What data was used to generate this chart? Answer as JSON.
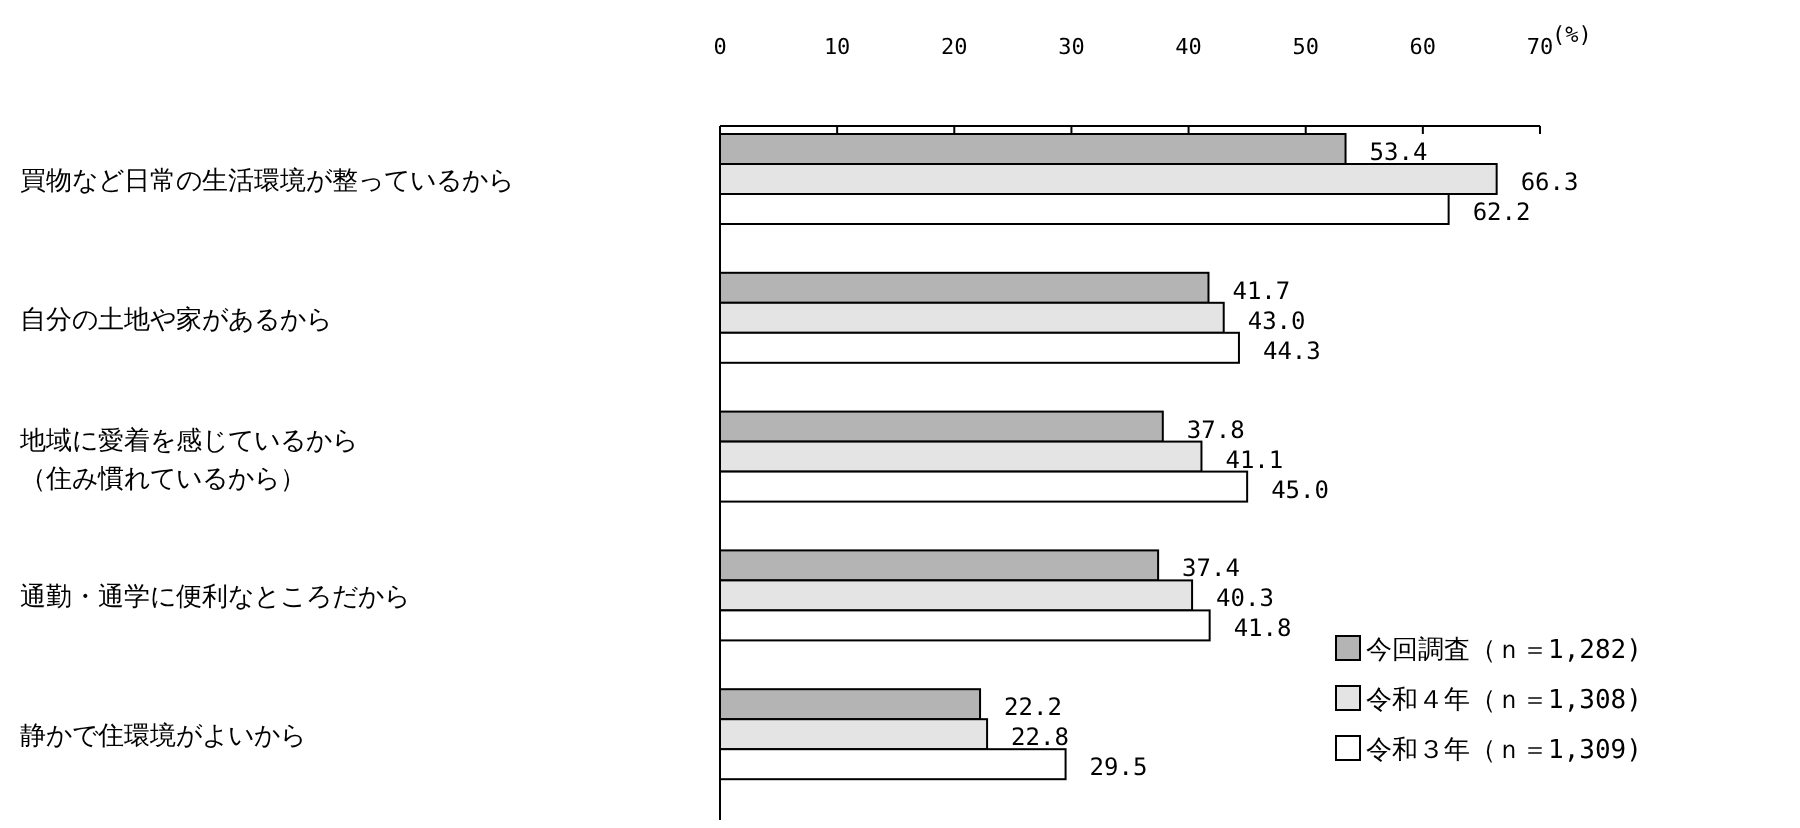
{
  "chart_data": {
    "type": "bar",
    "orientation": "horizontal",
    "xlabel": "(%)",
    "categories": [
      "買物など日常の生活環境が整っているから",
      "自分の土地や家があるから",
      "地域に愛着を感じているから（住み慣れているから）",
      "通勤・通学に便利なところだから",
      "静かで住環境がよいから"
    ],
    "series": [
      {
        "name": "今回調査（ｎ＝1,282)",
        "color": "#b4b4b4",
        "values": [
          53.4,
          41.7,
          37.8,
          37.4,
          22.2
        ],
        "value_labels": [
          "53.4",
          "41.7",
          "37.8",
          "37.4",
          "22.2"
        ]
      },
      {
        "name": "令和４年（ｎ＝1,308)",
        "color": "#e4e4e4",
        "values": [
          66.3,
          43.0,
          41.1,
          40.3,
          22.8
        ],
        "value_labels": [
          "66.3",
          "43.0",
          "41.1",
          "40.3",
          "22.8"
        ]
      },
      {
        "name": "令和３年（ｎ＝1,309)",
        "color": "#ffffff",
        "values": [
          62.2,
          44.3,
          45.0,
          41.8,
          29.5
        ],
        "value_labels": [
          "62.2",
          "44.3",
          "45.0",
          "41.8",
          "29.5"
        ]
      }
    ],
    "xlim": [
      0,
      70
    ],
    "xticks": [
      0,
      10,
      20,
      30,
      40,
      50,
      60,
      70
    ],
    "legend": "bottom right",
    "grid": false
  }
}
